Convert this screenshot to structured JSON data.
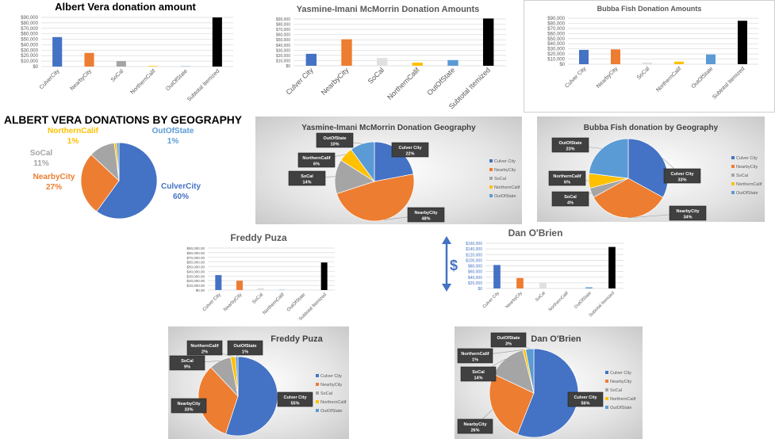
{
  "chart_data": [
    {
      "type": "bar",
      "title": "Albert Vera donation amount",
      "categories": [
        "CulverCity",
        "NearbyCity",
        "SoCal",
        "NorthernCalif",
        "OutOfState",
        "Subtotal Itemized"
      ],
      "values": [
        54000,
        25000,
        10000,
        1000,
        1000,
        90000
      ],
      "colors": [
        "#4472c4",
        "#ed7d31",
        "#a5a5a5",
        "#ffc000",
        "#9dc3e6",
        "#000000"
      ],
      "ylim": [
        0,
        90000
      ],
      "y_ticks": [
        0,
        10000,
        20000,
        30000,
        40000,
        50000,
        60000,
        70000,
        80000,
        90000
      ],
      "y_tick_labels": [
        "$0",
        "$10,000",
        "$20,000",
        "$30,000",
        "$40,000",
        "$50,000",
        "$60,000",
        "$70,000",
        "$80,000",
        "$90,000"
      ],
      "xlabel": "",
      "ylabel": "",
      "grid": true
    },
    {
      "type": "bar",
      "title": "Yasmine-Imani McMorrin Donation Amounts",
      "categories": [
        "Culver City",
        "NearbyCity",
        "SoCal",
        "NorthernCalif",
        "OutOfState",
        "Subtotal Itemized"
      ],
      "values": [
        23000,
        51000,
        15000,
        6000,
        11000,
        91000
      ],
      "colors": [
        "#4472c4",
        "#ed7d31",
        "#e0e0e0",
        "#ffc000",
        "#5b9bd5",
        "#000000"
      ],
      "ylim": [
        0,
        90000
      ],
      "y_ticks": [
        0,
        10000,
        20000,
        30000,
        40000,
        50000,
        60000,
        70000,
        80000,
        90000
      ],
      "y_tick_labels": [
        "$0",
        "$10,000",
        "$20,000",
        "$30,000",
        "$40,000",
        "$50,000",
        "$60,000",
        "$70,000",
        "$80,000",
        "$90,000"
      ],
      "xlabel": "",
      "ylabel": "",
      "grid": true
    },
    {
      "type": "bar",
      "title": "Bubba Fish Donation Amounts",
      "categories": [
        "Culver City",
        "NearbyCity",
        "SoCal",
        "NorthernCalif",
        "OutOfState",
        "Subtotal Itemized"
      ],
      "values": [
        28000,
        29000,
        3000,
        5000,
        19000,
        85000
      ],
      "colors": [
        "#4472c4",
        "#ed7d31",
        "#e0e0e0",
        "#ffc000",
        "#5b9bd5",
        "#000000"
      ],
      "ylim": [
        0,
        90000
      ],
      "y_ticks": [
        0,
        10000,
        20000,
        30000,
        40000,
        50000,
        60000,
        70000,
        80000,
        90000
      ],
      "y_tick_labels": [
        "$0",
        "$10,000",
        "$20,000",
        "$30,000",
        "$40,000",
        "$50,000",
        "$60,000",
        "$70,000",
        "$80,000",
        "$90,000"
      ],
      "xlabel": "",
      "ylabel": "",
      "grid": true
    },
    {
      "type": "pie",
      "title": "ALBERT VERA DONATIONS BY GEOGRAPHY",
      "categories": [
        "CulverCity",
        "NearbyCity",
        "SoCal",
        "NorthernCalif",
        "OutOfState"
      ],
      "values": [
        60,
        27,
        11,
        1,
        1
      ],
      "labels": [
        "60%",
        "27%",
        "11%",
        "1%",
        "1%"
      ],
      "colors": [
        "#4472c4",
        "#ed7d31",
        "#a5a5a5",
        "#ffc000",
        "#5b9bd5"
      ],
      "label_style": "colored-text",
      "legend": "none"
    },
    {
      "type": "pie",
      "title": "Yasmine-Imani McMorrin Donation Geography",
      "categories": [
        "Culver City",
        "NearbyCity",
        "SoCal",
        "NorthernCalif",
        "OutOfState"
      ],
      "values": [
        22,
        48,
        14,
        6,
        10
      ],
      "labels": [
        "22%",
        "48%",
        "14%",
        "6%",
        "10%"
      ],
      "colors": [
        "#4472c4",
        "#ed7d31",
        "#a5a5a5",
        "#ffc000",
        "#5b9bd5"
      ],
      "label_style": "callout",
      "legend": "right"
    },
    {
      "type": "pie",
      "title": "Bubba Fish donation by Geography",
      "categories": [
        "Culver City",
        "NearbyCity",
        "SoCal",
        "NorthernCalif",
        "OutOfState"
      ],
      "values": [
        33,
        34,
        4,
        6,
        23
      ],
      "labels": [
        "33%",
        "34%",
        "4%",
        "6%",
        "23%"
      ],
      "colors": [
        "#4472c4",
        "#ed7d31",
        "#a5a5a5",
        "#ffc000",
        "#5b9bd5"
      ],
      "label_style": "callout",
      "legend": "right"
    },
    {
      "type": "bar",
      "title": "Freddy Puza",
      "categories": [
        "Culver City",
        "NearbyCity",
        "SoCal",
        "NorthernCalif",
        "OutOfState",
        "Subtotal Itemized"
      ],
      "values": [
        32000,
        20000,
        4000,
        1000,
        0,
        59000
      ],
      "colors": [
        "#4472c4",
        "#ed7d31",
        "#e0e0e0",
        "#9dc3e6",
        "#5b9bd5",
        "#000000"
      ],
      "ylim": [
        0,
        90000
      ],
      "y_ticks": [
        0,
        10000,
        20000,
        30000,
        40000,
        50000,
        60000,
        70000,
        80000,
        90000
      ],
      "y_tick_labels": [
        "$0.00",
        "$10,000.00",
        "$20,000.00",
        "$30,000.00",
        "$40,000.00",
        "$50,000.00",
        "$60,000.00",
        "$70,000.00",
        "$80,000.00",
        "$90,000.00"
      ],
      "xlabel": "",
      "ylabel": "",
      "grid": true
    },
    {
      "type": "bar",
      "title": "Dan O'Brien",
      "categories": [
        "Culver City",
        "NearbyCity",
        "SoCal",
        "NorthernCalif",
        "OutOfState",
        "Subtotal Itemized"
      ],
      "values": [
        83000,
        37000,
        19000,
        0,
        4000,
        147000
      ],
      "colors": [
        "#4472c4",
        "#ed7d31",
        "#e0e0e0",
        "#ffc000",
        "#5b9bd5",
        "#000000"
      ],
      "ylim": [
        0,
        160000
      ],
      "y_ticks": [
        0,
        20000,
        40000,
        60000,
        80000,
        100000,
        120000,
        140000,
        160000
      ],
      "y_tick_labels": [
        "$0",
        "$20,000",
        "$40,000",
        "$60,000",
        "$80,000",
        "$100,000",
        "$120,000",
        "$140,000",
        "$160,000"
      ],
      "xlabel": "",
      "ylabel": "",
      "grid": true,
      "annotation": "$"
    },
    {
      "type": "pie",
      "title": "Freddy Puza",
      "categories": [
        "Culver City",
        "NearbyCity",
        "SoCal",
        "NorthernCalif",
        "OutOfState"
      ],
      "values": [
        55,
        33,
        9,
        2,
        1
      ],
      "labels": [
        "55%",
        "33%",
        "9%",
        "2%",
        "1%"
      ],
      "colors": [
        "#4472c4",
        "#ed7d31",
        "#a5a5a5",
        "#ffc000",
        "#5b9bd5"
      ],
      "label_style": "callout",
      "legend": "right"
    },
    {
      "type": "pie",
      "title": "Dan O'Brien",
      "categories": [
        "Culver City",
        "NearbyCity",
        "SoCal",
        "NorthernCalif",
        "OutOfState"
      ],
      "values": [
        56,
        26,
        14,
        1,
        3
      ],
      "labels": [
        "56%",
        "26%",
        "14%",
        "1%",
        "3%"
      ],
      "colors": [
        "#4472c4",
        "#ed7d31",
        "#a5a5a5",
        "#ffc000",
        "#5b9bd5"
      ],
      "label_style": "callout",
      "legend": "right"
    }
  ]
}
